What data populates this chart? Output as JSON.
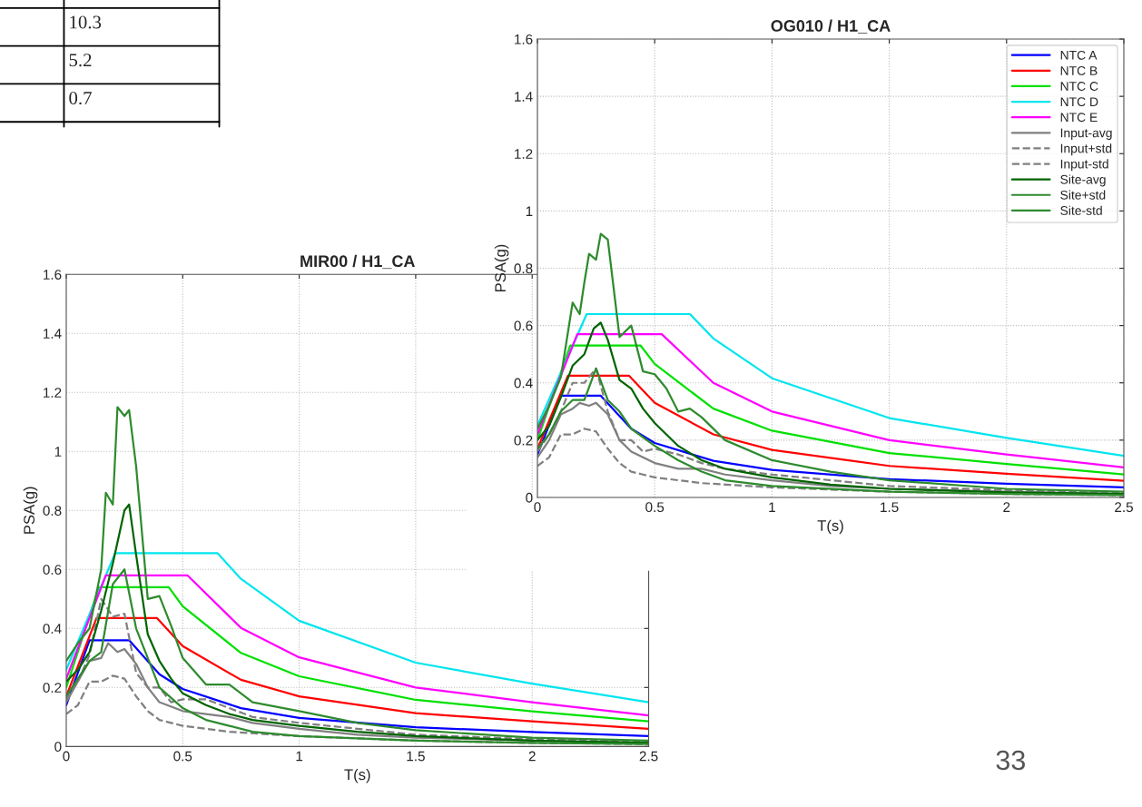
{
  "chart_data": [
    {
      "type": "other",
      "categories": [
        null,
        null,
        null
      ],
      "annotations": [
        "10.3",
        "5.2",
        "0.7",
        "33"
      ]
    },
    {
      "type": "line",
      "title": "OG010 / H1_CA",
      "xlabel": "T(s)",
      "ylabel": "PSA(g)",
      "xlim": [
        0,
        2.5
      ],
      "ylim": [
        0,
        1.6
      ],
      "xticks": [
        0,
        0.5,
        1,
        1.5,
        2,
        2.5
      ],
      "yticks": [
        0,
        0.2,
        0.4,
        0.6,
        0.8,
        1,
        1.2,
        1.4,
        1.6
      ],
      "grid": true,
      "legend": "top right",
      "marker": "none",
      "series": [
        {
          "name": "NTC A",
          "color": "#0000ff",
          "line_style": "solid",
          "x": [
            0,
            0.1,
            0.27,
            0.4,
            0.5,
            0.75,
            1,
            1.5,
            2,
            2.5
          ],
          "values": [
            0.15,
            0.355,
            0.355,
            0.24,
            0.19,
            0.128,
            0.096,
            0.064,
            0.048,
            0.035
          ]
        },
        {
          "name": "NTC B",
          "color": "#ff0000",
          "line_style": "solid",
          "x": [
            0,
            0.13,
            0.39,
            0.5,
            0.75,
            1,
            1.5,
            2,
            2.5
          ],
          "values": [
            0.17,
            0.425,
            0.425,
            0.33,
            0.22,
            0.166,
            0.11,
            0.083,
            0.058
          ]
        },
        {
          "name": "NTC C",
          "color": "#00e000",
          "line_style": "solid",
          "x": [
            0,
            0.14,
            0.44,
            0.5,
            0.75,
            1,
            1.5,
            2,
            2.5
          ],
          "values": [
            0.2,
            0.53,
            0.53,
            0.466,
            0.31,
            0.233,
            0.155,
            0.117,
            0.08
          ]
        },
        {
          "name": "NTC D",
          "color": "#00e5ee",
          "line_style": "solid",
          "x": [
            0,
            0.21,
            0.65,
            0.75,
            1,
            1.5,
            2,
            2.5
          ],
          "values": [
            0.25,
            0.64,
            0.64,
            0.555,
            0.416,
            0.277,
            0.208,
            0.145
          ]
        },
        {
          "name": "NTC E",
          "color": "#ff00ff",
          "line_style": "solid",
          "x": [
            0,
            0.17,
            0.53,
            0.75,
            1,
            1.5,
            2,
            2.5
          ],
          "values": [
            0.22,
            0.57,
            0.57,
            0.4,
            0.3,
            0.2,
            0.15,
            0.105
          ]
        },
        {
          "name": "Input-avg",
          "color": "#808080",
          "line_style": "solid",
          "x": [
            0,
            0.05,
            0.1,
            0.15,
            0.18,
            0.22,
            0.25,
            0.3,
            0.35,
            0.4,
            0.5,
            0.6,
            0.7,
            0.8,
            1,
            1.25,
            1.5,
            2,
            2.5
          ],
          "values": [
            0.14,
            0.2,
            0.29,
            0.31,
            0.33,
            0.32,
            0.33,
            0.29,
            0.2,
            0.16,
            0.12,
            0.1,
            0.1,
            0.08,
            0.06,
            0.04,
            0.03,
            0.02,
            0.012
          ]
        },
        {
          "name": "Input+std",
          "color": "#808080",
          "line_style": "dashed",
          "x": [
            0,
            0.05,
            0.1,
            0.15,
            0.2,
            0.25,
            0.3,
            0.35,
            0.4,
            0.45,
            0.5,
            0.6,
            0.7,
            0.8,
            1,
            1.5,
            2,
            2.5
          ],
          "values": [
            0.16,
            0.22,
            0.3,
            0.4,
            0.4,
            0.45,
            0.3,
            0.2,
            0.2,
            0.16,
            0.17,
            0.15,
            0.12,
            0.1,
            0.08,
            0.04,
            0.025,
            0.015
          ]
        },
        {
          "name": "Input-std",
          "color": "#808080",
          "line_style": "dashed",
          "x": [
            0,
            0.05,
            0.1,
            0.15,
            0.2,
            0.25,
            0.3,
            0.35,
            0.4,
            0.45,
            0.5,
            0.6,
            0.7,
            0.8,
            1,
            1.5,
            2,
            2.5
          ],
          "values": [
            0.11,
            0.14,
            0.22,
            0.22,
            0.24,
            0.23,
            0.17,
            0.12,
            0.09,
            0.08,
            0.07,
            0.06,
            0.05,
            0.045,
            0.035,
            0.02,
            0.012,
            0.008
          ]
        },
        {
          "name": "Site-avg",
          "color": "#006400",
          "line_style": "solid",
          "x": [
            0,
            0.05,
            0.1,
            0.15,
            0.2,
            0.24,
            0.27,
            0.3,
            0.35,
            0.4,
            0.45,
            0.5,
            0.6,
            0.7,
            0.8,
            1,
            1.25,
            1.5,
            2,
            2.5
          ],
          "values": [
            0.2,
            0.25,
            0.35,
            0.46,
            0.5,
            0.59,
            0.61,
            0.55,
            0.41,
            0.38,
            0.31,
            0.26,
            0.18,
            0.13,
            0.1,
            0.07,
            0.045,
            0.03,
            0.018,
            0.012
          ]
        },
        {
          "name": "Site+std",
          "color": "#2e8b2e",
          "line_style": "solid",
          "x": [
            0,
            0.05,
            0.1,
            0.15,
            0.18,
            0.2,
            0.22,
            0.25,
            0.27,
            0.3,
            0.35,
            0.4,
            0.45,
            0.5,
            0.55,
            0.6,
            0.65,
            0.7,
            0.8,
            1,
            1.25,
            1.5,
            2,
            2.5
          ],
          "values": [
            0.24,
            0.32,
            0.42,
            0.68,
            0.64,
            0.75,
            0.85,
            0.83,
            0.92,
            0.9,
            0.56,
            0.6,
            0.44,
            0.43,
            0.38,
            0.3,
            0.31,
            0.28,
            0.2,
            0.13,
            0.09,
            0.06,
            0.03,
            0.02
          ]
        },
        {
          "name": "Site-std",
          "color": "#2e8b2e",
          "line_style": "solid",
          "x": [
            0,
            0.05,
            0.1,
            0.15,
            0.2,
            0.25,
            0.3,
            0.35,
            0.4,
            0.5,
            0.6,
            0.7,
            0.8,
            1,
            1.5,
            2,
            2.5
          ],
          "values": [
            0.17,
            0.22,
            0.3,
            0.34,
            0.34,
            0.45,
            0.34,
            0.3,
            0.24,
            0.18,
            0.13,
            0.09,
            0.06,
            0.04,
            0.02,
            0.012,
            0.008
          ]
        }
      ]
    },
    {
      "type": "line",
      "title": "MIR00 / H1_CA",
      "xlabel": "T(s)",
      "ylabel": "PSA(g)",
      "xlim": [
        0,
        2.5
      ],
      "ylim": [
        0,
        1.6
      ],
      "xticks": [
        0,
        0.5,
        1,
        1.5,
        2,
        2.5
      ],
      "yticks": [
        0,
        0.2,
        0.4,
        0.6,
        0.8,
        1,
        1.2,
        1.4,
        1.6
      ],
      "grid": true,
      "marker": "none",
      "series": [
        {
          "color": "#0000ff",
          "line_style": "solid",
          "x": [
            0,
            0.1,
            0.27,
            0.4,
            0.5,
            0.75,
            1,
            1.5,
            2,
            2.5
          ],
          "values": [
            0.14,
            0.36,
            0.36,
            0.245,
            0.195,
            0.13,
            0.097,
            0.065,
            0.049,
            0.035
          ]
        },
        {
          "color": "#ff0000",
          "line_style": "solid",
          "x": [
            0,
            0.13,
            0.39,
            0.5,
            0.75,
            1,
            1.5,
            2,
            2.5
          ],
          "values": [
            0.17,
            0.435,
            0.435,
            0.34,
            0.226,
            0.17,
            0.113,
            0.085,
            0.06
          ]
        },
        {
          "color": "#00e000",
          "line_style": "solid",
          "x": [
            0,
            0.14,
            0.44,
            0.5,
            0.75,
            1,
            1.5,
            2,
            2.5
          ],
          "values": [
            0.2,
            0.54,
            0.54,
            0.475,
            0.317,
            0.238,
            0.158,
            0.119,
            0.085
          ]
        },
        {
          "color": "#00e5ee",
          "line_style": "solid",
          "x": [
            0,
            0.21,
            0.65,
            0.75,
            1,
            1.5,
            2,
            2.5
          ],
          "values": [
            0.26,
            0.655,
            0.655,
            0.568,
            0.426,
            0.284,
            0.213,
            0.15
          ]
        },
        {
          "color": "#ff00ff",
          "line_style": "solid",
          "x": [
            0,
            0.17,
            0.52,
            0.75,
            1,
            1.5,
            2,
            2.5
          ],
          "values": [
            0.23,
            0.58,
            0.58,
            0.402,
            0.302,
            0.2,
            0.15,
            0.105
          ]
        },
        {
          "color": "#808080",
          "line_style": "solid",
          "x": [
            0,
            0.05,
            0.1,
            0.15,
            0.18,
            0.22,
            0.25,
            0.3,
            0.35,
            0.4,
            0.5,
            0.6,
            0.7,
            0.8,
            1,
            1.25,
            1.5,
            2,
            2.5
          ],
          "values": [
            0.15,
            0.22,
            0.29,
            0.3,
            0.35,
            0.32,
            0.33,
            0.28,
            0.2,
            0.15,
            0.12,
            0.11,
            0.1,
            0.08,
            0.06,
            0.04,
            0.03,
            0.02,
            0.012
          ]
        },
        {
          "color": "#808080",
          "line_style": "dashed",
          "x": [
            0,
            0.05,
            0.1,
            0.15,
            0.2,
            0.25,
            0.3,
            0.35,
            0.4,
            0.45,
            0.5,
            0.6,
            0.7,
            0.8,
            1,
            1.5,
            2,
            2.5
          ],
          "values": [
            0.16,
            0.22,
            0.31,
            0.5,
            0.44,
            0.45,
            0.25,
            0.2,
            0.2,
            0.15,
            0.16,
            0.16,
            0.13,
            0.1,
            0.08,
            0.04,
            0.025,
            0.015
          ]
        },
        {
          "color": "#808080",
          "line_style": "dashed",
          "x": [
            0,
            0.05,
            0.1,
            0.15,
            0.2,
            0.25,
            0.3,
            0.35,
            0.4,
            0.45,
            0.5,
            0.6,
            0.7,
            0.8,
            1,
            1.5,
            2,
            2.5
          ],
          "values": [
            0.11,
            0.14,
            0.22,
            0.22,
            0.24,
            0.23,
            0.17,
            0.12,
            0.09,
            0.08,
            0.07,
            0.06,
            0.05,
            0.045,
            0.035,
            0.02,
            0.012,
            0.008
          ]
        },
        {
          "color": "#006400",
          "line_style": "solid",
          "x": [
            0,
            0.05,
            0.1,
            0.15,
            0.2,
            0.25,
            0.27,
            0.3,
            0.35,
            0.4,
            0.45,
            0.5,
            0.6,
            0.7,
            0.8,
            1,
            1.25,
            1.5,
            2,
            2.5
          ],
          "values": [
            0.22,
            0.26,
            0.32,
            0.46,
            0.62,
            0.8,
            0.82,
            0.65,
            0.38,
            0.29,
            0.23,
            0.18,
            0.14,
            0.11,
            0.09,
            0.07,
            0.05,
            0.035,
            0.02,
            0.012
          ]
        },
        {
          "color": "#2e8b2e",
          "line_style": "solid",
          "x": [
            0,
            0.05,
            0.1,
            0.15,
            0.17,
            0.2,
            0.22,
            0.25,
            0.27,
            0.3,
            0.35,
            0.4,
            0.45,
            0.5,
            0.6,
            0.7,
            0.8,
            1,
            1.25,
            1.5,
            2,
            2.5
          ],
          "values": [
            0.29,
            0.35,
            0.4,
            0.6,
            0.86,
            0.82,
            1.15,
            1.12,
            1.14,
            0.95,
            0.5,
            0.51,
            0.41,
            0.3,
            0.21,
            0.21,
            0.15,
            0.12,
            0.08,
            0.055,
            0.03,
            0.02
          ]
        },
        {
          "color": "#2e8b2e",
          "line_style": "solid",
          "x": [
            0,
            0.05,
            0.1,
            0.15,
            0.2,
            0.25,
            0.3,
            0.35,
            0.4,
            0.5,
            0.6,
            0.7,
            0.8,
            1,
            1.5,
            2,
            2.5
          ],
          "values": [
            0.17,
            0.23,
            0.29,
            0.32,
            0.55,
            0.6,
            0.4,
            0.3,
            0.2,
            0.13,
            0.09,
            0.07,
            0.05,
            0.035,
            0.02,
            0.012,
            0.008
          ]
        }
      ]
    }
  ]
}
